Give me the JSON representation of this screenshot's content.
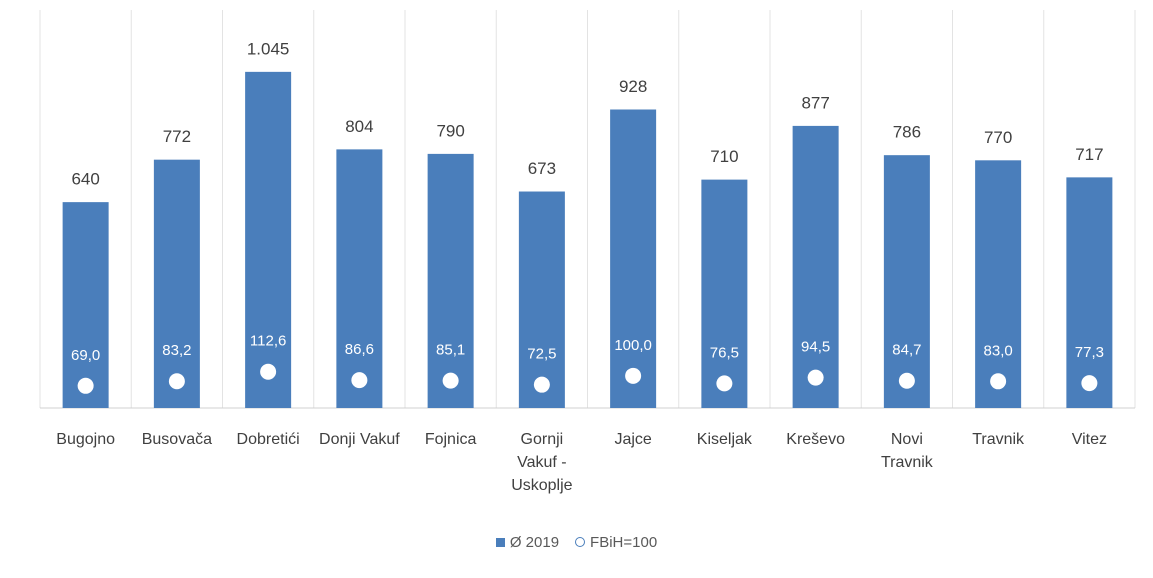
{
  "chart_data": {
    "type": "bar",
    "categories": [
      "Bugojno",
      "Busovača",
      "Dobretići",
      "Donji Vakuf",
      "Fojnica",
      "Gornji Vakuf - Uskoplje",
      "Jajce",
      "Kiseljak",
      "Kreševo",
      "Novi Travnik",
      "Travnik",
      "Vitez"
    ],
    "series": [
      {
        "name": "Ø 2019",
        "color": "#4a7ebb",
        "mark": "bar",
        "values": [
          640,
          772,
          1045,
          804,
          790,
          673,
          928,
          710,
          877,
          786,
          770,
          717
        ],
        "value_labels": [
          "640",
          "772",
          "1.045",
          "804",
          "790",
          "673",
          "928",
          "710",
          "877",
          "786",
          "770",
          "717"
        ]
      },
      {
        "name": "FBiH=100",
        "color": "#ffffff",
        "mark": "circle",
        "values": [
          69.0,
          83.2,
          112.6,
          86.6,
          85.1,
          72.5,
          100.0,
          76.5,
          94.5,
          84.7,
          83.0,
          77.3
        ],
        "value_labels": [
          "69,0",
          "83,2",
          "112,6",
          "86,6",
          "85,1",
          "72,5",
          "100,0",
          "76,5",
          "94,5",
          "84,7",
          "83,0",
          "77,3"
        ]
      }
    ],
    "ylim": [
      0,
      1200
    ],
    "legend": "bottom"
  }
}
